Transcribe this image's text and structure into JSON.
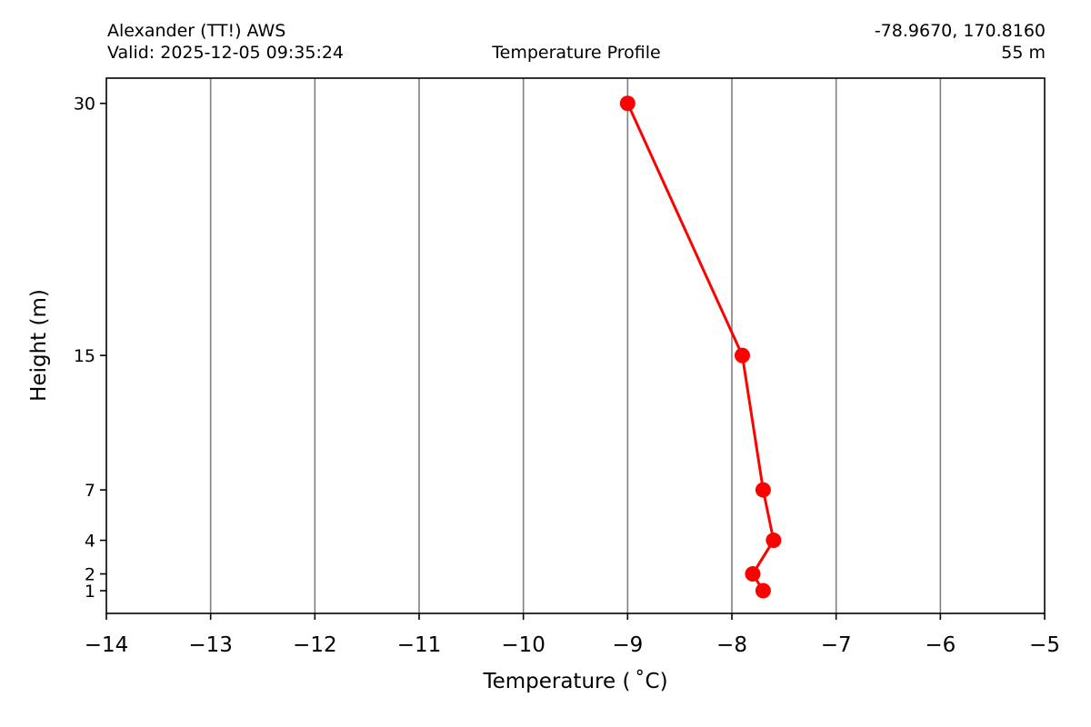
{
  "header": {
    "station": "Alexander (TT!) AWS",
    "valid": "Valid: 2025-12-05 09:35:24",
    "coords": "-78.9670, 170.8160",
    "elevation": "55 m"
  },
  "chart_data": {
    "type": "line",
    "title": "Temperature Profile",
    "xlabel": "Temperature ($^\\circ$C)",
    "xlabel_display": "Temperature ( ˚C)",
    "ylabel": "Height (m)",
    "xlim": [
      -14,
      -5
    ],
    "ylim": [
      -0.35,
      31.5
    ],
    "xticks": [
      -14,
      -13,
      -12,
      -11,
      -10,
      -9,
      -8,
      -7,
      -6,
      -5
    ],
    "xtick_labels": [
      "−14",
      "−13",
      "−12",
      "−11",
      "−10",
      "−9",
      "−8",
      "−7",
      "−6",
      "−5"
    ],
    "yticks": [
      1,
      2,
      4,
      7,
      15,
      30
    ],
    "ytick_labels": [
      "1",
      "2",
      "4",
      "7",
      "15",
      "30"
    ],
    "grid": "x",
    "color": "#ff0000",
    "series": [
      {
        "x": [
          -7.7,
          -7.8,
          -7.6,
          -7.7,
          -7.9,
          -9.0
        ],
        "y": [
          1,
          2,
          4,
          7,
          15,
          30
        ]
      }
    ]
  }
}
